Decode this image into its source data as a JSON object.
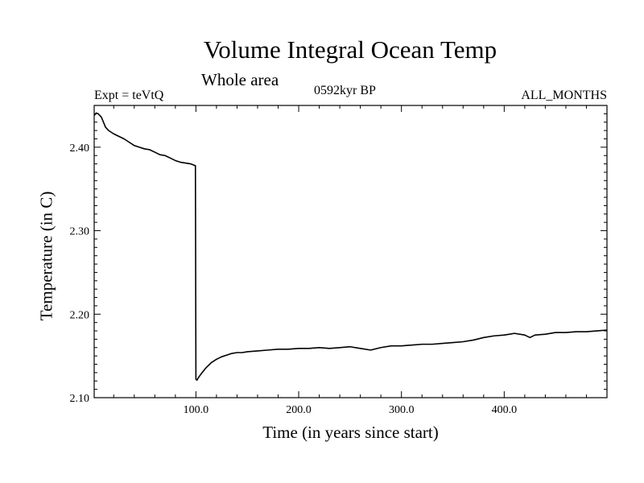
{
  "chart_data": {
    "type": "line",
    "title": "Volume Integral Ocean Temp",
    "subtitle": "Whole area",
    "annotations": {
      "experiment": "Expt = teVtQ",
      "period": "0592kyr BP",
      "months": "ALL_MONTHS"
    },
    "xlabel": "Time (in years since start)",
    "ylabel": "Temperature (in C)",
    "xlim": [
      1,
      500
    ],
    "ylim": [
      2.1,
      2.45
    ],
    "x_ticks": [
      100,
      200,
      300,
      400
    ],
    "x_tick_labels": [
      "100.0",
      "200.0",
      "300.0",
      "400.0"
    ],
    "y_ticks": [
      2.1,
      2.2,
      2.3,
      2.4
    ],
    "y_tick_labels": [
      "2.10",
      "2.20",
      "2.30",
      "2.40"
    ],
    "grid": false,
    "series": [
      {
        "x": [
          1,
          3,
          5,
          8,
          10,
          12,
          15,
          20,
          25,
          30,
          35,
          40,
          45,
          50,
          55,
          60,
          65,
          70,
          75,
          80,
          85,
          90,
          95,
          99,
          99.5,
          100,
          101,
          103,
          106,
          110,
          115,
          120,
          125,
          130,
          135,
          140,
          145,
          150,
          160,
          170,
          180,
          190,
          200,
          210,
          220,
          230,
          240,
          250,
          260,
          270,
          280,
          290,
          300,
          310,
          320,
          330,
          340,
          350,
          360,
          370,
          380,
          390,
          400,
          410,
          420,
          425,
          430,
          440,
          450,
          460,
          470,
          480,
          490,
          500
        ],
        "y": [
          2.438,
          2.441,
          2.44,
          2.436,
          2.43,
          2.424,
          2.42,
          2.416,
          2.413,
          2.41,
          2.406,
          2.402,
          2.4,
          2.398,
          2.397,
          2.394,
          2.391,
          2.39,
          2.387,
          2.384,
          2.382,
          2.381,
          2.38,
          2.378,
          2.378,
          2.122,
          2.121,
          2.125,
          2.13,
          2.136,
          2.142,
          2.146,
          2.149,
          2.151,
          2.153,
          2.154,
          2.154,
          2.155,
          2.156,
          2.157,
          2.158,
          2.158,
          2.159,
          2.159,
          2.16,
          2.159,
          2.16,
          2.161,
          2.159,
          2.157,
          2.16,
          2.162,
          2.162,
          2.163,
          2.164,
          2.164,
          2.165,
          2.166,
          2.167,
          2.169,
          2.172,
          2.174,
          2.175,
          2.177,
          2.175,
          2.172,
          2.175,
          2.176,
          2.178,
          2.178,
          2.179,
          2.179,
          2.18,
          2.181
        ]
      }
    ]
  }
}
